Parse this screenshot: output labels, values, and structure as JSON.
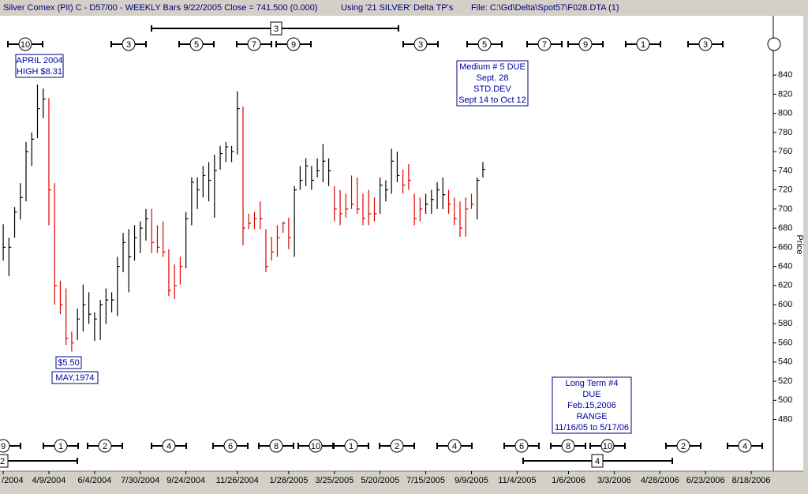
{
  "chart_data": {
    "type": "hlc_bar",
    "title": "Silver Comex (Pit) C - D57/00  - WEEKLY Bars  9/22/2005 Close = 741.500 (0.000)",
    "tp_set": "Using '21 SILVER' Delta TP's",
    "file": "File: C:\\Gd\\Delta\\Spot57\\F028.DTA (1)",
    "ylabel": "Price",
    "x": [
      "2/13/2004",
      "2/20/2004",
      "2/27/2004",
      "3/5/2004",
      "3/12/2004",
      "3/19/2004",
      "3/26/2004",
      "4/2/2004",
      "4/9/2004",
      "4/16/2004",
      "4/23/2004",
      "4/30/2004",
      "5/7/2004",
      "5/14/2004",
      "5/21/2004",
      "5/28/2004",
      "6/4/2004",
      "6/11/2004",
      "6/18/2004",
      "6/25/2004",
      "7/2/2004",
      "7/9/2004",
      "7/16/2004",
      "7/23/2004",
      "7/30/2004",
      "8/6/2004",
      "8/13/2004",
      "8/20/2004",
      "8/27/2004",
      "9/3/2004",
      "9/10/2004",
      "9/17/2004",
      "9/24/2004",
      "10/1/2004",
      "10/8/2004",
      "10/15/2004",
      "10/22/2004",
      "10/29/2004",
      "11/5/2004",
      "11/12/2004",
      "11/19/2004",
      "11/26/2004",
      "12/3/2004",
      "12/10/2004",
      "12/17/2004",
      "12/24/2004",
      "12/31/2004",
      "1/7/2005",
      "1/14/2005",
      "1/21/2005",
      "1/28/2005",
      "2/4/2005",
      "2/11/2005",
      "2/18/2005",
      "2/25/2005",
      "3/4/2005",
      "3/11/2005",
      "3/18/2005",
      "3/25/2005",
      "4/1/2005",
      "4/8/2005",
      "4/15/2005",
      "4/22/2005",
      "4/29/2005",
      "5/6/2005",
      "5/13/2005",
      "5/20/2005",
      "5/27/2005",
      "6/3/2005",
      "6/10/2005",
      "6/17/2005",
      "6/24/2005",
      "7/1/2005",
      "7/8/2005",
      "7/15/2005",
      "7/22/2005",
      "7/29/2005",
      "8/5/2005",
      "8/12/2005",
      "8/19/2005",
      "8/26/2005",
      "9/2/2005",
      "9/9/2005",
      "9/16/2005",
      "9/23/2005"
    ],
    "high": [
      684,
      670,
      702,
      727,
      770,
      780,
      830,
      826,
      816,
      727,
      625,
      617,
      572,
      596,
      621,
      613,
      592,
      605,
      617,
      613,
      650,
      675,
      679,
      683,
      687,
      700,
      700,
      683,
      687,
      658,
      642,
      650,
      697,
      733,
      733,
      745,
      749,
      757,
      766,
      770,
      766,
      823,
      807,
      695,
      697,
      708,
      679,
      671,
      683,
      687,
      691,
      724,
      745,
      753,
      745,
      753,
      768,
      753,
      724,
      720,
      716,
      735,
      733,
      716,
      720,
      712,
      733,
      730,
      763,
      760,
      741,
      747,
      716,
      712,
      716,
      720,
      728,
      733,
      720,
      712,
      708,
      712,
      716,
      733,
      749
    ],
    "low": [
      646,
      630,
      670,
      689,
      708,
      745,
      774,
      795,
      683,
      600,
      590,
      558,
      551,
      563,
      572,
      580,
      562,
      563,
      580,
      592,
      588,
      634,
      613,
      646,
      654,
      667,
      654,
      654,
      650,
      609,
      606,
      621,
      638,
      683,
      700,
      712,
      708,
      691,
      741,
      749,
      749,
      757,
      662,
      679,
      679,
      679,
      634,
      646,
      650,
      675,
      658,
      650,
      720,
      724,
      720,
      733,
      728,
      724,
      687,
      683,
      691,
      700,
      695,
      683,
      683,
      687,
      695,
      708,
      716,
      728,
      716,
      720,
      683,
      687,
      695,
      695,
      700,
      700,
      695,
      683,
      671,
      671,
      700,
      689,
      733
    ],
    "close": [
      660,
      660,
      697,
      712,
      760,
      773,
      805,
      815,
      720,
      620,
      600,
      565,
      560,
      585,
      600,
      590,
      585,
      600,
      605,
      605,
      640,
      665,
      650,
      670,
      680,
      690,
      665,
      660,
      655,
      615,
      620,
      640,
      690,
      728,
      720,
      735,
      730,
      740,
      758,
      765,
      760,
      805,
      680,
      685,
      690,
      690,
      640,
      655,
      670,
      685,
      670,
      720,
      730,
      745,
      730,
      740,
      750,
      740,
      700,
      695,
      700,
      705,
      700,
      690,
      695,
      695,
      725,
      720,
      750,
      735,
      725,
      730,
      690,
      700,
      705,
      710,
      720,
      715,
      705,
      690,
      680,
      700,
      705,
      730,
      741.5
    ],
    "bar_colors": [
      "#000000",
      "#000000",
      "#000000",
      "#000000",
      "#000000",
      "#000000",
      "#000000",
      "#000000",
      "#e00000",
      "#e00000",
      "#e00000",
      "#e00000",
      "#e00000",
      "#000000",
      "#000000",
      "#000000",
      "#000000",
      "#000000",
      "#000000",
      "#000000",
      "#000000",
      "#000000",
      "#000000",
      "#000000",
      "#000000",
      "#000000",
      "#e00000",
      "#e00000",
      "#e00000",
      "#e00000",
      "#e00000",
      "#e00000",
      "#000000",
      "#000000",
      "#000000",
      "#000000",
      "#000000",
      "#000000",
      "#000000",
      "#000000",
      "#000000",
      "#000000",
      "#e00000",
      "#e00000",
      "#e00000",
      "#e00000",
      "#e00000",
      "#e00000",
      "#e00000",
      "#e00000",
      "#e00000",
      "#000000",
      "#000000",
      "#000000",
      "#000000",
      "#000000",
      "#000000",
      "#000000",
      "#e00000",
      "#e00000",
      "#e00000",
      "#e00000",
      "#e00000",
      "#e00000",
      "#e00000",
      "#e00000",
      "#000000",
      "#000000",
      "#000000",
      "#000000",
      "#e00000",
      "#e00000",
      "#e00000",
      "#e00000",
      "#000000",
      "#000000",
      "#000000",
      "#000000",
      "#e00000",
      "#e00000",
      "#e00000",
      "#e00000",
      "#e00000",
      "#000000",
      "#000000"
    ],
    "xlim": [
      "2/11/2004",
      "9/14/2006"
    ],
    "xticks": [
      {
        "value": "2/13/2004",
        "label": "/2004"
      },
      "4/9/2004",
      "6/4/2004",
      "7/30/2004",
      "9/24/2004",
      "11/26/2004",
      "1/28/2005",
      "3/25/2005",
      "5/20/2005",
      "7/15/2005",
      "9/9/2005",
      "11/4/2005",
      "1/6/2006",
      "3/3/2006",
      "4/28/2006",
      "6/23/2006",
      "8/18/2006"
    ],
    "ylim": [
      426,
      902
    ],
    "yticks": [
      480,
      500,
      520,
      540,
      560,
      580,
      600,
      620,
      640,
      660,
      680,
      700,
      720,
      740,
      760,
      780,
      800,
      820,
      840
    ],
    "top_cycles": [
      "10",
      "3",
      "5",
      "7",
      "9",
      "3",
      "5",
      "7",
      "9",
      "1",
      "3"
    ],
    "bottom_cycles": [
      "9",
      "1",
      "2",
      "4",
      "6",
      "8",
      "10",
      "1",
      "2",
      "4",
      "6",
      "8",
      "10",
      "2",
      "4"
    ],
    "brackets": [
      "3",
      "2",
      "4"
    ],
    "annotations": [
      {
        "lines": [
          "APRIL 2004",
          "HIGH $8.31"
        ]
      },
      {
        "lines": [
          "$5.50"
        ]
      },
      {
        "lines": [
          "MAY,1974"
        ]
      },
      {
        "lines": [
          "Medium # 5  DUE",
          "Sept. 28",
          "STD.DEV",
          "Sept 14 to Oct 12"
        ]
      },
      {
        "lines": [
          "Long Term #4",
          "DUE",
          "Feb.15,2006",
          "RANGE",
          "11/16/05 to 5/17/06"
        ]
      }
    ]
  }
}
